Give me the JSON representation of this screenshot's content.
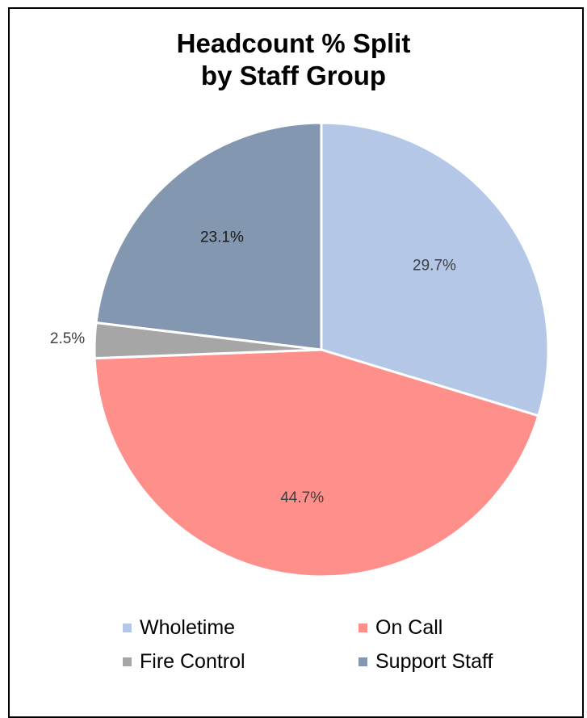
{
  "chart_data": {
    "type": "pie",
    "title": [
      "Headcount % Split",
      "by Staff Group"
    ],
    "slices": [
      {
        "name": "Wholetime",
        "value": 29.7,
        "label": "29.7%",
        "color": "#b4c7e7"
      },
      {
        "name": "On Call",
        "value": 44.7,
        "label": "44.7%",
        "color": "#ff8f8b"
      },
      {
        "name": "Fire Control",
        "value": 2.5,
        "label": "2.5%",
        "color": "#a6a6a6"
      },
      {
        "name": "Support Staff",
        "value": 23.1,
        "label": "23.1%",
        "color": "#8497b0"
      }
    ],
    "legend_position": "bottom",
    "start_angle": "12 o'clock",
    "direction": "clockwise"
  }
}
